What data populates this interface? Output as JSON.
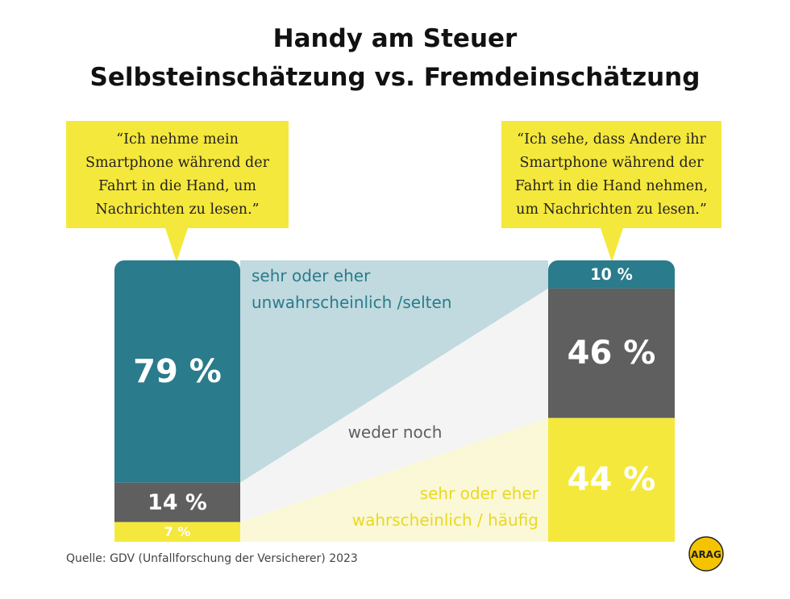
{
  "chart_data": {
    "type": "stacked_bar",
    "title": "Handy am Steuer",
    "subtitle": "Selbsteinschätzung vs. Fremdeinschätzung",
    "categories": [
      "“Ich nehme mein Smartphone während der Fahrt in die Hand, um Nachrichten zu lesen.”",
      "“Ich sehe, dass Andere ihr Smartphone während der Fahrt in die Hand nehmen, um Nachrichten zu lesen.”"
    ],
    "series": [
      {
        "name": "sehr oder eher unwahrscheinlich /selten",
        "color": "#2a7b8c",
        "band_color": "#c0dadf",
        "values": [
          79,
          10
        ],
        "value_labels": [
          "79 %",
          "10 %"
        ]
      },
      {
        "name": "weder noch",
        "color": "#5f5f5f",
        "band_color": "#f4f4f4",
        "values": [
          14,
          46
        ],
        "value_labels": [
          "14 %",
          "46 %"
        ]
      },
      {
        "name": "sehr oder eher wahrscheinlich / häufig",
        "color": "#f5e83c",
        "label_color": "#e8d920",
        "band_color": "#fbf8d8",
        "values": [
          7,
          44
        ],
        "value_labels": [
          "7 %",
          "44 %"
        ]
      }
    ],
    "ylim": [
      0,
      100
    ],
    "source": "Quelle:  GDV (Unfallforschung der Versicherer) 2023",
    "logo": "ARAG"
  }
}
